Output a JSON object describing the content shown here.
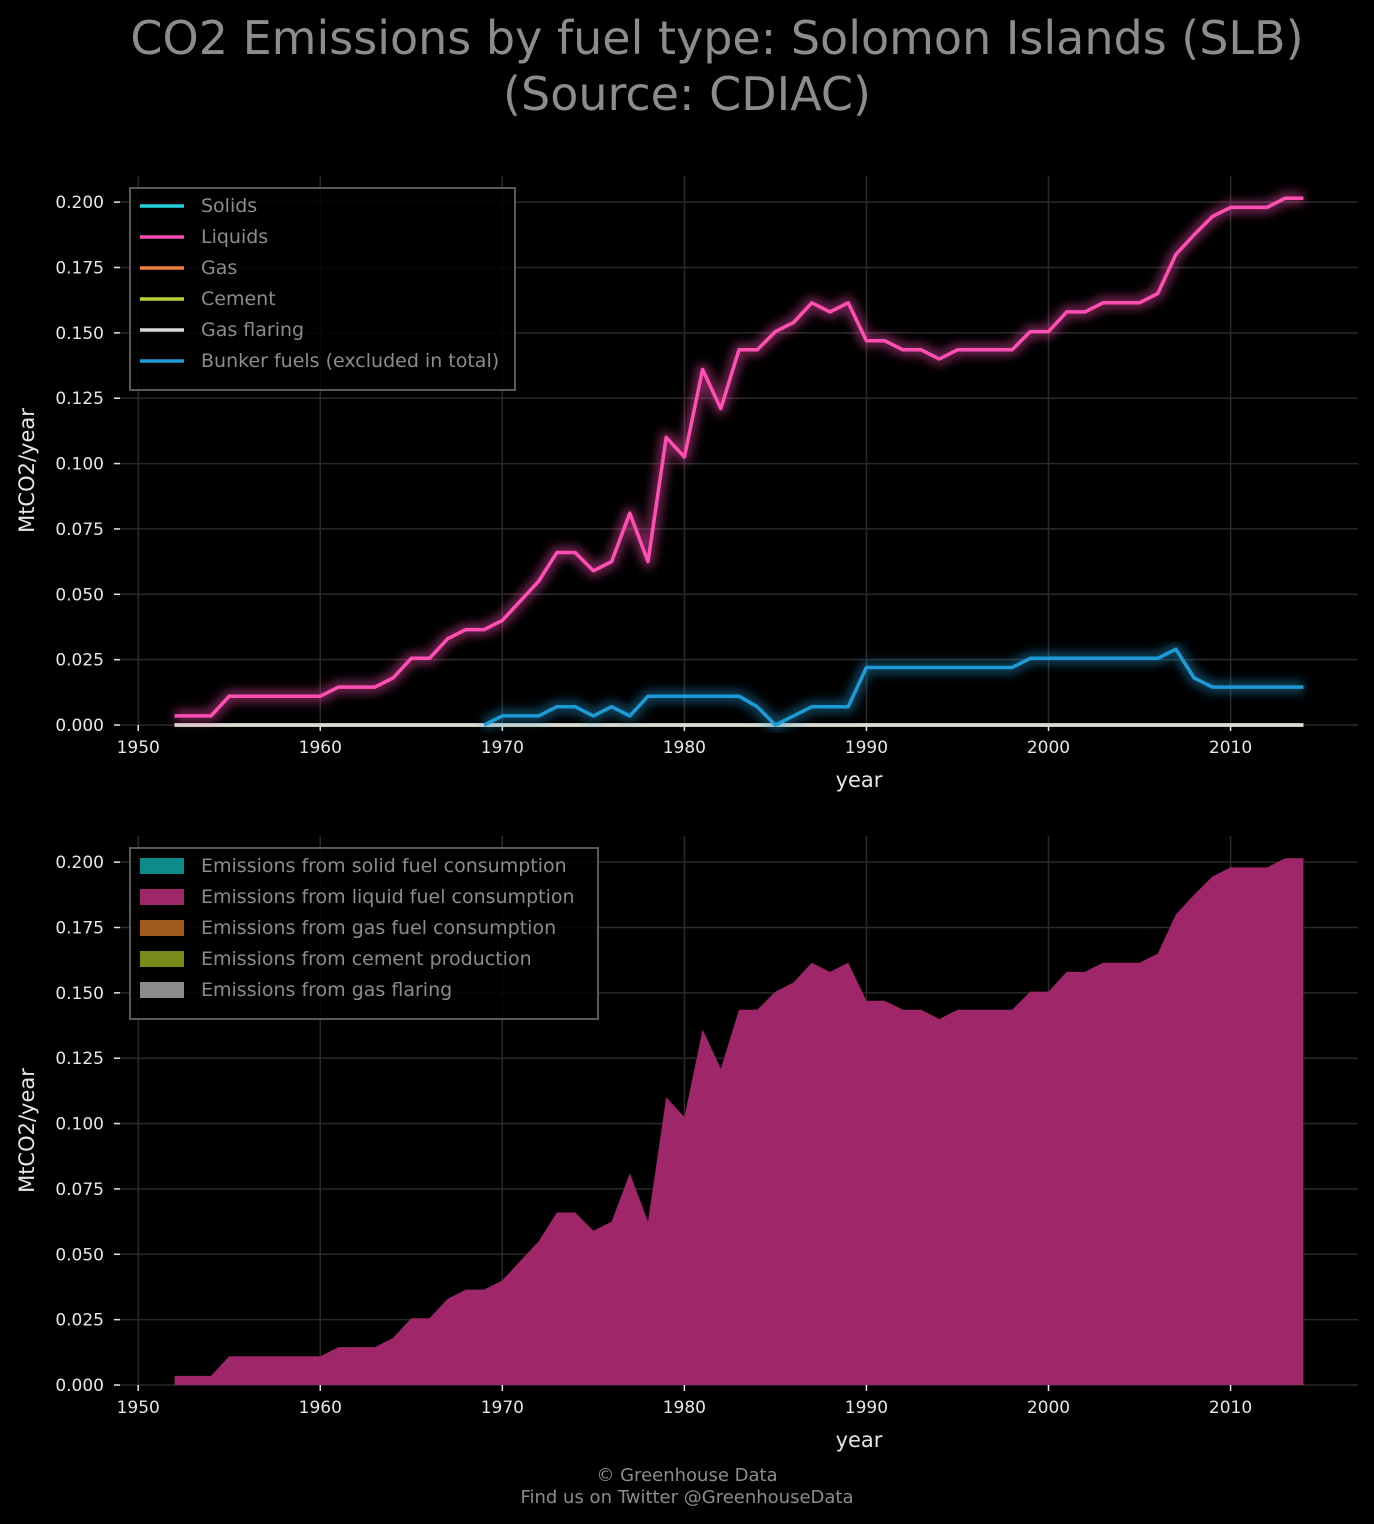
{
  "title_line1": "CO2 Emissions by fuel type: Solomon Islands (SLB)",
  "title_line2": "(Source: CDIAC)",
  "footer_line1": "© Greenhouse Data",
  "footer_line2": "Find us on Twitter @GreenhouseData",
  "chart_data": [
    {
      "type": "line",
      "xlabel": "year",
      "ylabel": "MtCO2/year",
      "xlim": [
        1949,
        2017
      ],
      "ylim": [
        0,
        0.21
      ],
      "xticks": [
        1950,
        1960,
        1970,
        1980,
        1990,
        2000,
        2010
      ],
      "yticks": [
        "0.000",
        "0.025",
        "0.050",
        "0.075",
        "0.100",
        "0.125",
        "0.150",
        "0.175",
        "0.200"
      ],
      "grid": true,
      "legend_position": "top-left",
      "x": [
        1952,
        1953,
        1954,
        1955,
        1956,
        1957,
        1958,
        1959,
        1960,
        1961,
        1962,
        1963,
        1964,
        1965,
        1966,
        1967,
        1968,
        1969,
        1970,
        1971,
        1972,
        1973,
        1974,
        1975,
        1976,
        1977,
        1978,
        1979,
        1980,
        1981,
        1982,
        1983,
        1984,
        1985,
        1986,
        1987,
        1988,
        1989,
        1990,
        1991,
        1992,
        1993,
        1994,
        1995,
        1996,
        1997,
        1998,
        1999,
        2000,
        2001,
        2002,
        2003,
        2004,
        2005,
        2006,
        2007,
        2008,
        2009,
        2010,
        2011,
        2012,
        2013,
        2014
      ],
      "series": [
        {
          "name": "Solids",
          "color": "#1fd3e0",
          "values": [
            0,
            0,
            0,
            0,
            0,
            0,
            0,
            0,
            0,
            0,
            0,
            0,
            0,
            0,
            0,
            0,
            0,
            0,
            0,
            0,
            0,
            0,
            0,
            0,
            0,
            0,
            0,
            0,
            0,
            0,
            0,
            0,
            0,
            0,
            0,
            0,
            0,
            0,
            0,
            0,
            0,
            0,
            0,
            0,
            0,
            0,
            0,
            0,
            0,
            0,
            0,
            0,
            0,
            0,
            0,
            0,
            0,
            0,
            0,
            0,
            0,
            0,
            0
          ]
        },
        {
          "name": "Liquids",
          "color": "#ff4fb3",
          "values": [
            0.0035,
            0.0035,
            0.0035,
            0.011,
            0.011,
            0.011,
            0.011,
            0.011,
            0.011,
            0.0145,
            0.0145,
            0.0145,
            0.018,
            0.0255,
            0.0255,
            0.033,
            0.0365,
            0.0365,
            0.04,
            0.0475,
            0.055,
            0.066,
            0.066,
            0.059,
            0.0625,
            0.081,
            0.0625,
            0.11,
            0.1025,
            0.136,
            0.121,
            0.1435,
            0.1435,
            0.1505,
            0.154,
            0.1615,
            0.158,
            0.1615,
            0.147,
            0.147,
            0.1435,
            0.1435,
            0.14,
            0.1435,
            0.1435,
            0.1435,
            0.1435,
            0.1505,
            0.1505,
            0.158,
            0.158,
            0.1615,
            0.1615,
            0.1615,
            0.165,
            0.18,
            0.1875,
            0.1945,
            0.198,
            0.198,
            0.198,
            0.2015,
            0.2015
          ]
        },
        {
          "name": "Gas",
          "color": "#f07f3c",
          "values": [
            0,
            0,
            0,
            0,
            0,
            0,
            0,
            0,
            0,
            0,
            0,
            0,
            0,
            0,
            0,
            0,
            0,
            0,
            0,
            0,
            0,
            0,
            0,
            0,
            0,
            0,
            0,
            0,
            0,
            0,
            0,
            0,
            0,
            0,
            0,
            0,
            0,
            0,
            0,
            0,
            0,
            0,
            0,
            0,
            0,
            0,
            0,
            0,
            0,
            0,
            0,
            0,
            0,
            0,
            0,
            0,
            0,
            0,
            0,
            0,
            0,
            0,
            0
          ]
        },
        {
          "name": "Cement",
          "color": "#b5d334",
          "values": [
            0,
            0,
            0,
            0,
            0,
            0,
            0,
            0,
            0,
            0,
            0,
            0,
            0,
            0,
            0,
            0,
            0,
            0,
            0,
            0,
            0,
            0,
            0,
            0,
            0,
            0,
            0,
            0,
            0,
            0,
            0,
            0,
            0,
            0,
            0,
            0,
            0,
            0,
            0,
            0,
            0,
            0,
            0,
            0,
            0,
            0,
            0,
            0,
            0,
            0,
            0,
            0,
            0,
            0,
            0,
            0,
            0,
            0,
            0,
            0,
            0,
            0,
            0
          ]
        },
        {
          "name": "Gas flaring",
          "color": "#d9d9d9",
          "values": [
            0,
            0,
            0,
            0,
            0,
            0,
            0,
            0,
            0,
            0,
            0,
            0,
            0,
            0,
            0,
            0,
            0,
            0,
            0,
            0,
            0,
            0,
            0,
            0,
            0,
            0,
            0,
            0,
            0,
            0,
            0,
            0,
            0,
            0,
            0,
            0,
            0,
            0,
            0,
            0,
            0,
            0,
            0,
            0,
            0,
            0,
            0,
            0,
            0,
            0,
            0,
            0,
            0,
            0,
            0,
            0,
            0,
            0,
            0,
            0,
            0,
            0,
            0
          ]
        },
        {
          "name": "Bunker fuels (excluded in total)",
          "color": "#1e9bd7",
          "values": [
            null,
            null,
            null,
            null,
            null,
            null,
            null,
            null,
            null,
            null,
            null,
            null,
            null,
            null,
            null,
            null,
            null,
            0,
            0.0035,
            0.0035,
            0.0035,
            0.007,
            0.007,
            0.0035,
            0.007,
            0.0035,
            0.011,
            0.011,
            0.011,
            0.011,
            0.011,
            0.011,
            0.007,
            0,
            0.0035,
            0.007,
            0.007,
            0.007,
            0.022,
            0.022,
            0.022,
            0.022,
            0.022,
            0.022,
            0.022,
            0.022,
            0.022,
            0.0255,
            0.0255,
            0.0255,
            0.0255,
            0.0255,
            0.0255,
            0.0255,
            0.0255,
            0.029,
            0.018,
            0.0145,
            0.0145,
            0.0145,
            0.0145,
            0.0145,
            0.0145
          ]
        }
      ]
    },
    {
      "type": "area",
      "stacked": true,
      "xlabel": "year",
      "ylabel": "MtCO2/year",
      "xlim": [
        1949,
        2017
      ],
      "ylim": [
        0,
        0.21
      ],
      "xticks": [
        1950,
        1960,
        1970,
        1980,
        1990,
        2000,
        2010
      ],
      "yticks": [
        "0.000",
        "0.025",
        "0.050",
        "0.075",
        "0.100",
        "0.125",
        "0.150",
        "0.175",
        "0.200"
      ],
      "grid": true,
      "legend_position": "top-left",
      "series": [
        {
          "name": "Emissions from solid fuel consumption",
          "color": "#0e8a8a",
          "source": 0
        },
        {
          "name": "Emissions from liquid fuel consumption",
          "color": "#a0266a",
          "source": 1
        },
        {
          "name": "Emissions from gas fuel consumption",
          "color": "#a05a20",
          "source": 2
        },
        {
          "name": "Emissions from cement production",
          "color": "#7a8a1a",
          "source": 3
        },
        {
          "name": "Emissions from gas flaring",
          "color": "#8c8c8c",
          "source": 4
        }
      ]
    }
  ]
}
